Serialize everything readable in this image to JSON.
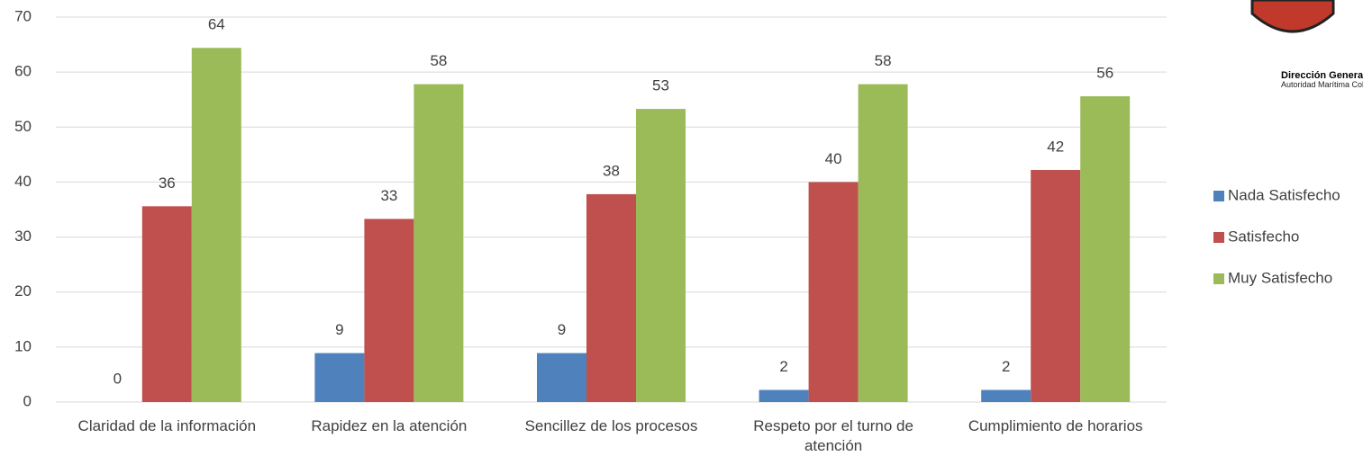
{
  "chart_data": {
    "type": "bar",
    "categories": [
      "Claridad de la información",
      "Rapidez en la atención",
      "Sencillez de los procesos",
      "Respeto por el turno de atención",
      "Cumplimiento de horarios"
    ],
    "series": [
      {
        "name": "Nada Satisfecho",
        "color": "#4f81bd",
        "values": [
          0,
          8.9,
          8.9,
          2.2,
          2.2
        ],
        "value_labels": [
          "0",
          "9",
          "9",
          "2",
          "2"
        ]
      },
      {
        "name": "Satisfecho",
        "color": "#c0504d",
        "values": [
          35.6,
          33.3,
          37.8,
          40,
          42.2
        ],
        "value_labels": [
          "36",
          "33",
          "38",
          "40",
          "42"
        ]
      },
      {
        "name": "Muy Satisfecho",
        "color": "#9bbb59",
        "values": [
          64.4,
          57.8,
          53.3,
          57.8,
          55.6
        ],
        "value_labels": [
          "64",
          "58",
          "53",
          "58",
          "56"
        ]
      }
    ],
    "ylim": [
      0,
      70
    ],
    "yticks": [
      0,
      10,
      20,
      30,
      40,
      50,
      60,
      70
    ],
    "grid": true,
    "legend": "right"
  },
  "logo": {
    "line1": "Dirección General Mar",
    "line2": "Autoridad Marítima Colom"
  }
}
